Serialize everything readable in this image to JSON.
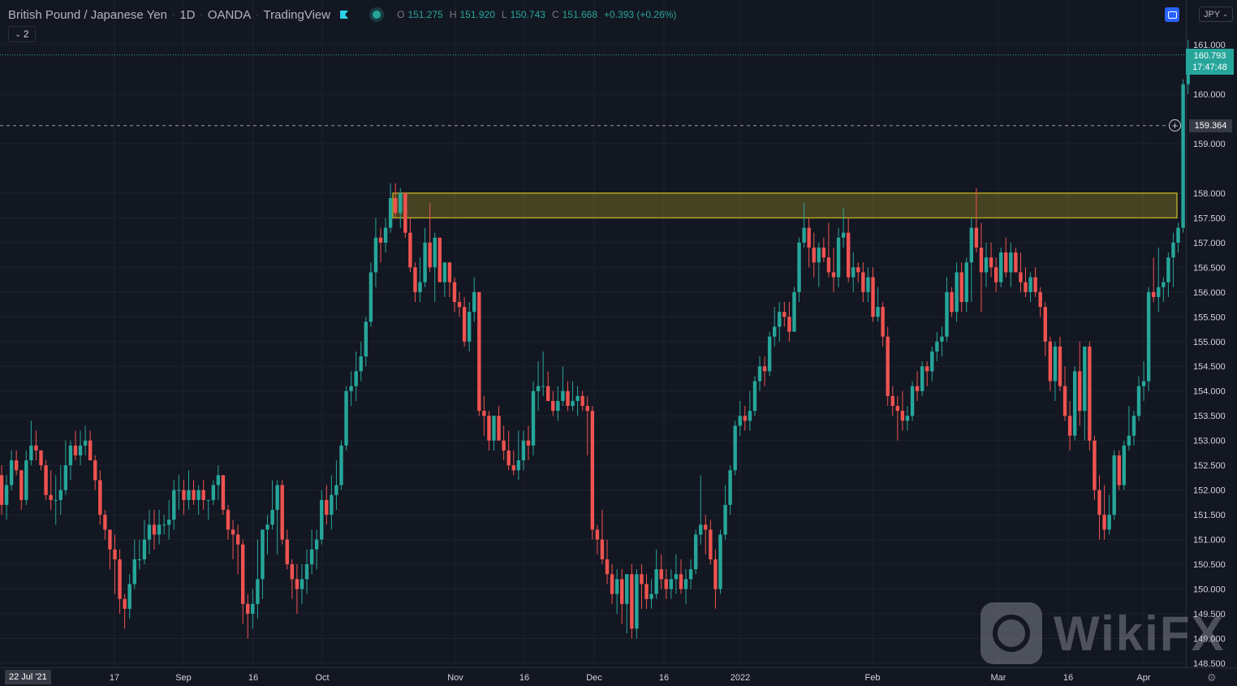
{
  "header": {
    "title": "British Pound / Japanese Yen",
    "interval": "1D",
    "broker": "OANDA",
    "platform": "TradingView",
    "ohlc": {
      "o_label": "O",
      "o_value": "151.275",
      "h_label": "H",
      "h_value": "151.920",
      "l_label": "L",
      "l_value": "150.743",
      "c_label": "C",
      "c_value": "151.668",
      "change": "+0.393 (+0.26%)"
    },
    "indicator_count": "2"
  },
  "currency_button": "JPY",
  "last_price": {
    "price": "160.793",
    "countdown": "17:47:48"
  },
  "crosshair_price": "159.364",
  "crosshair_date": "22 Jul '21",
  "watermark": "WikiFX",
  "colors": {
    "bg": "#131722",
    "up": "#26a69a",
    "down": "#ef5350",
    "zone": "#b5a322",
    "grid": "#1e222d"
  },
  "chart_data": {
    "type": "candlestick",
    "symbol": "GBPJPY",
    "interval": "1D",
    "y_ticks": [
      "148.500",
      "149.000",
      "149.500",
      "150.000",
      "150.500",
      "151.000",
      "151.500",
      "152.000",
      "152.500",
      "153.000",
      "153.500",
      "154.000",
      "154.500",
      "155.000",
      "155.500",
      "156.000",
      "156.500",
      "157.000",
      "157.500",
      "158.000",
      "159.000",
      "160.000",
      "161.000"
    ],
    "x_ticks": [
      "17",
      "Sep",
      "16",
      "Oct",
      "Nov",
      "16",
      "Dec",
      "16",
      "2022",
      "Feb",
      "Mar",
      "16",
      "Apr"
    ],
    "resistance_zone": {
      "low": 157.5,
      "high": 158.0
    },
    "current_price_line": 160.793,
    "crosshair_line": 159.364,
    "candles": [
      [
        152.3,
        152.5,
        151.5,
        151.7
      ],
      [
        151.7,
        152.3,
        151.4,
        152.1
      ],
      [
        152.1,
        152.8,
        152.0,
        152.6
      ],
      [
        152.6,
        152.8,
        152.3,
        152.4
      ],
      [
        152.4,
        152.4,
        151.6,
        151.8
      ],
      [
        151.8,
        152.8,
        151.7,
        152.6
      ],
      [
        152.6,
        153.4,
        152.5,
        152.9
      ],
      [
        152.9,
        153.2,
        152.6,
        152.8
      ],
      [
        152.8,
        152.8,
        152.4,
        152.5
      ],
      [
        152.5,
        152.6,
        151.8,
        151.9
      ],
      [
        151.9,
        152.4,
        151.6,
        151.8
      ],
      [
        151.8,
        152.3,
        151.3,
        151.8
      ],
      [
        151.8,
        152.5,
        151.5,
        152.0
      ],
      [
        152.0,
        153.0,
        151.9,
        152.5
      ],
      [
        152.5,
        153.0,
        152.2,
        152.9
      ],
      [
        152.9,
        153.2,
        152.6,
        152.7
      ],
      [
        152.7,
        153.2,
        152.5,
        152.9
      ],
      [
        152.9,
        153.3,
        152.7,
        153.0
      ],
      [
        153.0,
        153.2,
        152.6,
        152.6
      ],
      [
        152.6,
        152.7,
        152.0,
        152.2
      ],
      [
        152.2,
        152.4,
        151.3,
        151.5
      ],
      [
        151.5,
        151.6,
        151.0,
        151.2
      ],
      [
        151.2,
        151.2,
        150.4,
        150.8
      ],
      [
        150.8,
        151.1,
        149.9,
        150.6
      ],
      [
        150.6,
        150.8,
        149.5,
        149.8
      ],
      [
        149.8,
        149.9,
        149.2,
        149.6
      ],
      [
        149.6,
        150.3,
        149.4,
        150.1
      ],
      [
        150.1,
        151.0,
        150.0,
        150.6
      ],
      [
        150.6,
        151.0,
        150.4,
        150.6
      ],
      [
        150.6,
        151.4,
        150.5,
        151.0
      ],
      [
        151.0,
        151.6,
        150.7,
        151.3
      ],
      [
        151.3,
        151.6,
        150.8,
        151.1
      ],
      [
        151.1,
        151.6,
        150.9,
        151.3
      ],
      [
        151.3,
        151.5,
        151.1,
        151.3
      ],
      [
        151.3,
        151.8,
        151.0,
        151.4
      ],
      [
        151.4,
        152.2,
        151.2,
        152.0
      ],
      [
        152.0,
        152.3,
        151.6,
        152.0
      ],
      [
        152.0,
        152.2,
        151.5,
        151.8
      ],
      [
        151.8,
        152.4,
        151.6,
        152.0
      ],
      [
        152.0,
        152.2,
        151.7,
        151.8
      ],
      [
        151.8,
        152.1,
        151.5,
        152.0
      ],
      [
        152.0,
        152.2,
        151.6,
        151.8
      ],
      [
        151.8,
        151.8,
        151.4,
        151.8
      ],
      [
        151.8,
        152.2,
        151.7,
        152.1
      ],
      [
        152.1,
        152.5,
        151.8,
        152.3
      ],
      [
        152.3,
        152.3,
        151.5,
        151.6
      ],
      [
        151.6,
        151.7,
        151.0,
        151.2
      ],
      [
        151.2,
        151.4,
        150.6,
        151.1
      ],
      [
        151.1,
        151.3,
        150.3,
        150.9
      ],
      [
        150.9,
        151.0,
        149.3,
        149.7
      ],
      [
        149.7,
        149.9,
        149.0,
        149.5
      ],
      [
        149.5,
        150.0,
        149.2,
        149.7
      ],
      [
        149.7,
        151.0,
        149.4,
        150.2
      ],
      [
        150.2,
        151.2,
        149.8,
        151.2
      ],
      [
        151.2,
        151.5,
        150.7,
        151.3
      ],
      [
        151.3,
        152.2,
        151.2,
        151.6
      ],
      [
        151.6,
        152.2,
        150.7,
        152.1
      ],
      [
        152.1,
        152.2,
        150.9,
        151.0
      ],
      [
        151.0,
        151.2,
        150.4,
        150.5
      ],
      [
        150.5,
        150.6,
        149.8,
        150.2
      ],
      [
        150.2,
        150.5,
        149.5,
        150.0
      ],
      [
        150.0,
        150.5,
        149.7,
        150.2
      ],
      [
        150.2,
        150.8,
        149.9,
        150.5
      ],
      [
        150.5,
        151.2,
        150.3,
        150.8
      ],
      [
        150.8,
        151.2,
        150.4,
        151.0
      ],
      [
        151.0,
        152.0,
        150.9,
        151.8
      ],
      [
        151.8,
        152.1,
        151.3,
        151.5
      ],
      [
        151.5,
        152.3,
        151.2,
        151.9
      ],
      [
        151.9,
        152.6,
        151.6,
        152.1
      ],
      [
        152.1,
        153.0,
        152.0,
        152.9
      ],
      [
        152.9,
        154.1,
        152.8,
        154.0
      ],
      [
        154.0,
        154.4,
        153.7,
        154.1
      ],
      [
        154.1,
        154.8,
        153.8,
        154.4
      ],
      [
        154.4,
        155.0,
        154.2,
        154.7
      ],
      [
        154.7,
        155.5,
        154.5,
        155.4
      ],
      [
        155.4,
        156.6,
        155.3,
        156.4
      ],
      [
        156.4,
        157.5,
        156.1,
        157.1
      ],
      [
        157.1,
        157.3,
        156.6,
        157.0
      ],
      [
        157.0,
        157.5,
        156.8,
        157.3
      ],
      [
        157.3,
        158.2,
        157.2,
        157.9
      ],
      [
        157.9,
        158.2,
        157.5,
        157.6
      ],
      [
        157.6,
        158.1,
        157.3,
        158.0
      ],
      [
        158.0,
        158.0,
        157.1,
        157.2
      ],
      [
        157.2,
        157.5,
        156.4,
        156.5
      ],
      [
        156.5,
        156.6,
        155.8,
        156.0
      ],
      [
        156.0,
        156.7,
        155.8,
        156.2
      ],
      [
        156.2,
        157.3,
        156.1,
        157.0
      ],
      [
        157.0,
        157.8,
        156.4,
        156.5
      ],
      [
        156.5,
        157.2,
        155.8,
        157.1
      ],
      [
        157.1,
        157.1,
        156.3,
        156.2
      ],
      [
        156.2,
        156.6,
        155.9,
        156.6
      ],
      [
        156.6,
        156.6,
        155.9,
        156.2
      ],
      [
        156.2,
        156.3,
        155.6,
        155.8
      ],
      [
        155.8,
        156.0,
        155.5,
        155.7
      ],
      [
        155.7,
        155.9,
        154.9,
        155.0
      ],
      [
        155.0,
        155.8,
        154.8,
        155.6
      ],
      [
        155.6,
        156.3,
        155.4,
        156.0
      ],
      [
        156.0,
        156.0,
        153.5,
        153.6
      ],
      [
        153.6,
        153.9,
        153.1,
        153.5
      ],
      [
        153.5,
        153.6,
        152.8,
        153.0
      ],
      [
        153.0,
        153.5,
        152.8,
        153.5
      ],
      [
        153.5,
        153.7,
        153.0,
        153.0
      ],
      [
        153.0,
        153.3,
        152.6,
        152.8
      ],
      [
        152.8,
        153.2,
        152.4,
        152.5
      ],
      [
        152.5,
        152.8,
        152.3,
        152.4
      ],
      [
        152.4,
        153.2,
        152.2,
        152.6
      ],
      [
        152.6,
        153.2,
        152.4,
        153.0
      ],
      [
        153.0,
        153.3,
        152.6,
        152.9
      ],
      [
        152.9,
        154.2,
        152.7,
        154.0
      ],
      [
        154.0,
        154.6,
        153.6,
        154.1
      ],
      [
        154.1,
        154.8,
        153.9,
        154.1
      ],
      [
        154.1,
        154.4,
        153.8,
        153.8
      ],
      [
        153.8,
        154.0,
        153.5,
        153.6
      ],
      [
        153.6,
        154.1,
        153.4,
        153.8
      ],
      [
        153.8,
        154.5,
        153.7,
        154.0
      ],
      [
        154.0,
        154.2,
        153.6,
        153.7
      ],
      [
        153.7,
        154.2,
        153.6,
        153.8
      ],
      [
        153.8,
        154.1,
        153.5,
        153.9
      ],
      [
        153.9,
        154.0,
        153.6,
        153.7
      ],
      [
        153.7,
        153.9,
        152.7,
        153.6
      ],
      [
        153.6,
        153.7,
        151.0,
        151.2
      ],
      [
        151.2,
        151.3,
        150.7,
        151.0
      ],
      [
        151.0,
        151.6,
        150.5,
        150.6
      ],
      [
        150.6,
        151.0,
        150.1,
        150.3
      ],
      [
        150.3,
        150.5,
        149.7,
        149.9
      ],
      [
        149.9,
        150.4,
        149.5,
        150.2
      ],
      [
        150.2,
        150.4,
        149.3,
        149.7
      ],
      [
        149.7,
        150.2,
        149.1,
        150.3
      ],
      [
        150.3,
        150.5,
        149.0,
        149.2
      ],
      [
        149.2,
        150.4,
        149.0,
        150.3
      ],
      [
        150.3,
        150.5,
        149.6,
        150.1
      ],
      [
        150.1,
        150.3,
        149.6,
        149.8
      ],
      [
        149.8,
        150.2,
        149.6,
        149.9
      ],
      [
        149.9,
        150.8,
        149.8,
        150.4
      ],
      [
        150.4,
        150.7,
        150.0,
        150.2
      ],
      [
        150.2,
        150.4,
        149.8,
        150.0
      ],
      [
        150.0,
        150.4,
        149.8,
        150.2
      ],
      [
        150.2,
        150.7,
        149.9,
        150.3
      ],
      [
        150.3,
        150.6,
        149.9,
        150.0
      ],
      [
        150.0,
        150.4,
        149.7,
        150.2
      ],
      [
        150.2,
        150.6,
        150.0,
        150.4
      ],
      [
        150.4,
        151.2,
        150.3,
        151.1
      ],
      [
        151.1,
        152.3,
        150.9,
        151.3
      ],
      [
        151.3,
        151.5,
        150.7,
        151.2
      ],
      [
        151.2,
        151.4,
        150.5,
        150.6
      ],
      [
        150.6,
        150.8,
        149.6,
        150.0
      ],
      [
        150.0,
        151.2,
        149.9,
        151.1
      ],
      [
        151.1,
        152.1,
        151.0,
        151.7
      ],
      [
        151.7,
        152.5,
        151.5,
        152.4
      ],
      [
        152.4,
        153.4,
        152.3,
        153.3
      ],
      [
        153.3,
        153.8,
        153.1,
        153.5
      ],
      [
        153.5,
        153.7,
        153.2,
        153.4
      ],
      [
        153.4,
        154.0,
        153.2,
        153.6
      ],
      [
        153.6,
        154.3,
        153.5,
        154.2
      ],
      [
        154.2,
        154.7,
        154.0,
        154.5
      ],
      [
        154.5,
        154.7,
        154.1,
        154.4
      ],
      [
        154.4,
        155.2,
        154.3,
        155.1
      ],
      [
        155.1,
        155.7,
        154.9,
        155.3
      ],
      [
        155.3,
        155.8,
        155.0,
        155.6
      ],
      [
        155.6,
        155.8,
        155.3,
        155.5
      ],
      [
        155.5,
        155.8,
        155.0,
        155.2
      ],
      [
        155.2,
        156.1,
        155.2,
        156.0
      ],
      [
        156.0,
        157.1,
        155.8,
        157.0
      ],
      [
        157.0,
        157.8,
        156.9,
        157.3
      ],
      [
        157.3,
        157.5,
        156.5,
        156.9
      ],
      [
        156.9,
        157.2,
        156.3,
        156.6
      ],
      [
        156.6,
        157.0,
        156.1,
        156.9
      ],
      [
        156.9,
        157.1,
        156.6,
        156.7
      ],
      [
        156.7,
        157.4,
        156.3,
        156.4
      ],
      [
        156.4,
        156.9,
        156.0,
        156.3
      ],
      [
        156.3,
        157.3,
        156.1,
        157.1
      ],
      [
        157.1,
        157.7,
        156.9,
        157.2
      ],
      [
        157.2,
        157.5,
        156.2,
        156.3
      ],
      [
        156.3,
        156.8,
        156.0,
        156.5
      ],
      [
        156.5,
        156.6,
        156.2,
        156.4
      ],
      [
        156.4,
        156.6,
        155.8,
        156.0
      ],
      [
        156.0,
        156.5,
        155.8,
        156.3
      ],
      [
        156.3,
        156.5,
        155.4,
        155.5
      ],
      [
        155.5,
        156.1,
        155.4,
        155.7
      ],
      [
        155.7,
        155.8,
        154.9,
        155.1
      ],
      [
        155.1,
        155.3,
        153.7,
        153.9
      ],
      [
        153.9,
        154.1,
        153.5,
        153.7
      ],
      [
        153.7,
        153.9,
        153.0,
        153.6
      ],
      [
        153.6,
        154.0,
        153.2,
        153.4
      ],
      [
        153.4,
        153.7,
        153.2,
        153.5
      ],
      [
        153.5,
        154.2,
        153.4,
        154.1
      ],
      [
        154.1,
        154.4,
        153.8,
        154.0
      ],
      [
        154.0,
        154.6,
        153.9,
        154.5
      ],
      [
        154.5,
        154.6,
        154.1,
        154.4
      ],
      [
        154.4,
        154.9,
        154.2,
        154.8
      ],
      [
        154.8,
        155.2,
        154.6,
        155.0
      ],
      [
        155.0,
        155.3,
        154.7,
        155.1
      ],
      [
        155.1,
        156.3,
        155.0,
        156.0
      ],
      [
        156.0,
        156.1,
        155.5,
        155.6
      ],
      [
        155.6,
        156.6,
        155.4,
        156.4
      ],
      [
        156.4,
        156.6,
        155.6,
        155.8
      ],
      [
        155.8,
        156.7,
        155.6,
        156.6
      ],
      [
        156.6,
        157.5,
        155.8,
        157.3
      ],
      [
        157.3,
        158.1,
        156.8,
        156.9
      ],
      [
        156.9,
        157.4,
        155.6,
        156.4
      ],
      [
        156.4,
        157.0,
        156.1,
        156.7
      ],
      [
        156.7,
        157.0,
        156.3,
        156.5
      ],
      [
        156.5,
        156.7,
        156.0,
        156.2
      ],
      [
        156.2,
        156.9,
        156.1,
        156.8
      ],
      [
        156.8,
        157.1,
        156.3,
        156.4
      ],
      [
        156.4,
        157.0,
        156.1,
        156.8
      ],
      [
        156.8,
        156.9,
        156.4,
        156.4
      ],
      [
        156.4,
        156.8,
        156.0,
        156.2
      ],
      [
        156.2,
        156.5,
        155.9,
        156.0
      ],
      [
        156.0,
        156.4,
        155.8,
        156.3
      ],
      [
        156.3,
        156.5,
        155.9,
        156.0
      ],
      [
        156.0,
        156.1,
        155.5,
        155.7
      ],
      [
        155.7,
        155.8,
        154.7,
        155.0
      ],
      [
        155.0,
        155.1,
        154.0,
        154.2
      ],
      [
        154.2,
        155.0,
        153.8,
        154.9
      ],
      [
        154.9,
        155.1,
        154.0,
        154.1
      ],
      [
        154.1,
        154.5,
        153.4,
        153.5
      ],
      [
        153.5,
        153.8,
        152.8,
        153.1
      ],
      [
        153.1,
        154.5,
        153.0,
        154.4
      ],
      [
        154.4,
        155.0,
        153.3,
        153.6
      ],
      [
        153.6,
        154.8,
        153.0,
        154.9
      ],
      [
        154.9,
        155.0,
        152.8,
        153.0
      ],
      [
        153.0,
        153.1,
        151.8,
        152.0
      ],
      [
        152.0,
        152.3,
        151.0,
        151.5
      ],
      [
        151.5,
        152.1,
        151.0,
        151.2
      ],
      [
        151.2,
        151.9,
        151.1,
        151.5
      ],
      [
        151.5,
        152.8,
        151.4,
        152.7
      ],
      [
        152.7,
        152.8,
        152.0,
        152.1
      ],
      [
        152.1,
        153.0,
        152.0,
        152.9
      ],
      [
        152.9,
        153.7,
        152.8,
        153.1
      ],
      [
        153.1,
        153.6,
        152.9,
        153.5
      ],
      [
        153.5,
        154.3,
        153.4,
        154.1
      ],
      [
        154.1,
        154.6,
        153.8,
        154.2
      ],
      [
        154.2,
        156.1,
        154.0,
        156.0
      ],
      [
        156.0,
        156.7,
        155.8,
        155.9
      ],
      [
        155.9,
        156.9,
        155.6,
        156.1
      ],
      [
        156.1,
        156.3,
        155.8,
        156.2
      ],
      [
        156.2,
        156.8,
        155.9,
        156.7
      ],
      [
        156.7,
        157.2,
        156.1,
        157.0
      ],
      [
        157.0,
        157.4,
        156.8,
        157.3
      ],
      [
        157.3,
        160.3,
        157.2,
        160.2
      ],
      [
        160.2,
        161.1,
        160.0,
        160.793
      ]
    ]
  }
}
